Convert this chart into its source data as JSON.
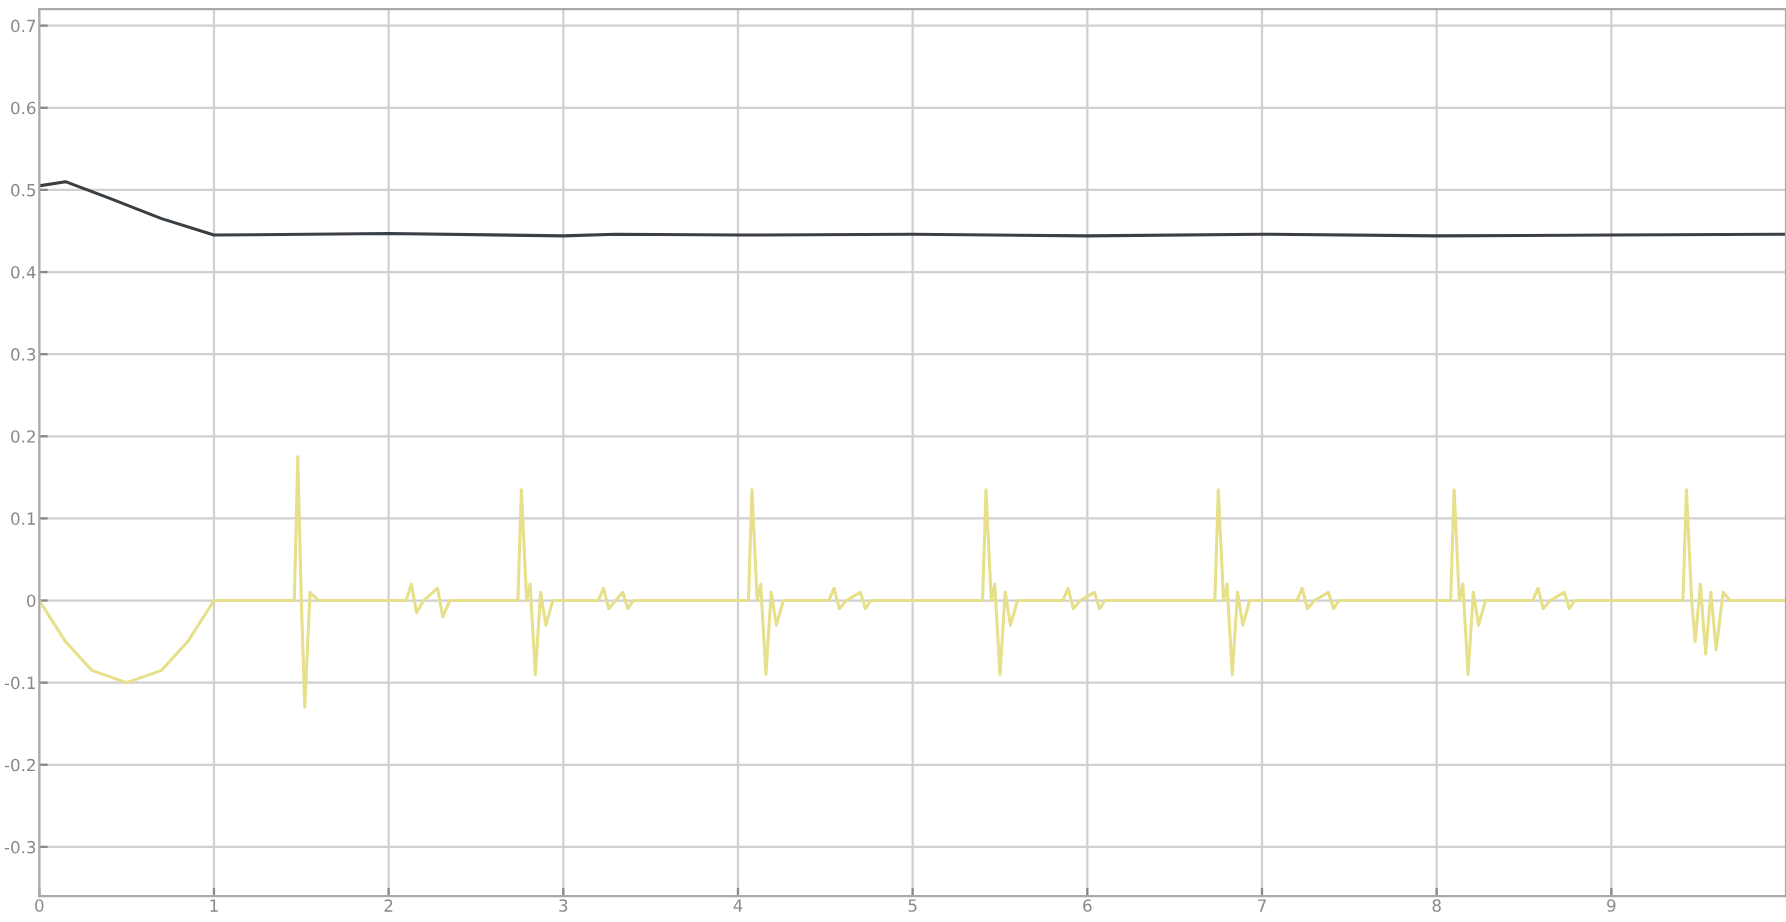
{
  "chart_data": {
    "type": "line",
    "xlim": [
      0,
      10
    ],
    "ylim": [
      -0.36,
      0.72
    ],
    "xticks": [
      0,
      1,
      2,
      3,
      4,
      5,
      6,
      7,
      8,
      9
    ],
    "yticks": [
      -0.3,
      -0.2,
      -0.1,
      0,
      0.1,
      0.2,
      0.3,
      0.4,
      0.5,
      0.6,
      0.7
    ],
    "grid": true,
    "marker": "none",
    "line_style": "solid",
    "series": [
      {
        "color": "#3a3f44",
        "x": [
          0,
          0.15,
          0.4,
          0.7,
          1.0,
          2,
          3,
          3.3,
          4,
          5,
          6,
          7,
          8,
          9,
          10
        ],
        "values": [
          0.505,
          0.51,
          0.49,
          0.465,
          0.445,
          0.447,
          0.444,
          0.446,
          0.445,
          0.446,
          0.444,
          0.446,
          0.444,
          0.445,
          0.446
        ]
      },
      {
        "color": "#e6e08a",
        "x": [
          0,
          0.15,
          0.3,
          0.5,
          0.7,
          0.85,
          1.0,
          1.46,
          1.48,
          1.5,
          1.52,
          1.55,
          1.6,
          2.1,
          2.13,
          2.16,
          2.2,
          2.28,
          2.31,
          2.35,
          2.74,
          2.76,
          2.79,
          2.81,
          2.84,
          2.87,
          2.9,
          2.94,
          3.2,
          3.23,
          3.26,
          3.3,
          3.34,
          3.37,
          3.4,
          4.06,
          4.08,
          4.11,
          4.13,
          4.16,
          4.19,
          4.22,
          4.26,
          4.52,
          4.55,
          4.58,
          4.62,
          4.7,
          4.73,
          4.76,
          5.4,
          5.42,
          5.45,
          5.47,
          5.5,
          5.53,
          5.56,
          5.6,
          5.86,
          5.89,
          5.92,
          5.96,
          6.04,
          6.07,
          6.1,
          6.73,
          6.75,
          6.78,
          6.8,
          6.83,
          6.86,
          6.89,
          6.93,
          7.2,
          7.23,
          7.26,
          7.3,
          7.38,
          7.41,
          7.44,
          8.08,
          8.1,
          8.13,
          8.15,
          8.18,
          8.21,
          8.24,
          8.28,
          8.55,
          8.58,
          8.61,
          8.65,
          8.73,
          8.76,
          8.79,
          9.41,
          9.43,
          9.46,
          9.48,
          9.51,
          9.54,
          9.57,
          9.6,
          9.64,
          9.68,
          10
        ],
        "values": [
          0,
          -0.05,
          -0.085,
          -0.1,
          -0.085,
          -0.05,
          0,
          0,
          0.175,
          0,
          -0.13,
          0.01,
          0,
          0,
          0.02,
          -0.015,
          0,
          0.015,
          -0.02,
          0,
          0,
          0.135,
          0,
          0.02,
          -0.09,
          0.01,
          -0.03,
          0,
          0,
          0.015,
          -0.01,
          0,
          0.01,
          -0.01,
          0,
          0,
          0.135,
          0,
          0.02,
          -0.09,
          0.01,
          -0.03,
          0,
          0,
          0.015,
          -0.01,
          0,
          0.01,
          -0.01,
          0,
          0,
          0.135,
          0,
          0.02,
          -0.09,
          0.01,
          -0.03,
          0,
          0,
          0.015,
          -0.01,
          0,
          0.01,
          -0.01,
          0,
          0,
          0.135,
          0,
          0.02,
          -0.09,
          0.01,
          -0.03,
          0,
          0,
          0.015,
          -0.01,
          0,
          0.01,
          -0.01,
          0,
          0,
          0.135,
          0,
          0.02,
          -0.09,
          0.01,
          -0.03,
          0,
          0,
          0.015,
          -0.01,
          0,
          0.01,
          -0.01,
          0,
          0,
          0.135,
          0,
          -0.05,
          0.02,
          -0.065,
          0.01,
          -0.06,
          0.01,
          0,
          0
        ]
      }
    ]
  }
}
